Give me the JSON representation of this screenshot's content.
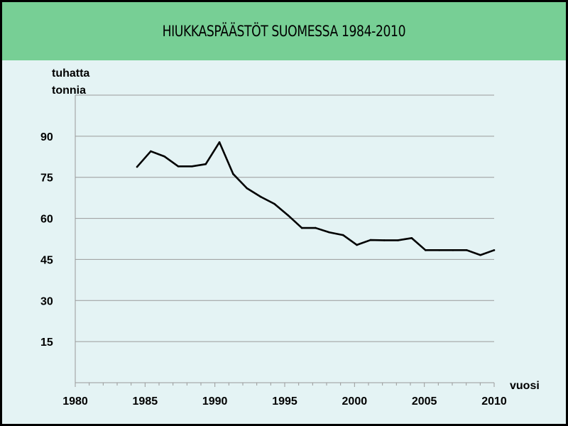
{
  "chart_data": {
    "type": "line",
    "title": "HIUKKASPÄÄSTÖT SUOMESSA 1984-2010",
    "ylabel_lines": [
      "tuhatta",
      "tonnia"
    ],
    "xlabel": "vuosi",
    "xlim": [
      1980,
      2010
    ],
    "ylim": [
      0,
      105
    ],
    "xticks": [
      "1980",
      "1985",
      "1990",
      "1995",
      "2000",
      "2005",
      "2010"
    ],
    "yticks": [
      "15",
      "30",
      "45",
      "60",
      "75",
      "90"
    ],
    "grid": true,
    "series": [
      {
        "name": "Hiukkaspäästöt",
        "color": "#000000",
        "x": [
          1984,
          1985,
          1986,
          1987,
          1988,
          1989,
          1990,
          1991,
          1992,
          1993,
          1994,
          1995,
          1996,
          1997,
          1998,
          1999,
          2000,
          2001,
          2002,
          2003,
          2004,
          2005,
          2006,
          2007,
          2008,
          2009,
          2010
        ],
        "values": [
          78.8,
          84.5,
          82.6,
          79,
          79,
          79.8,
          87.8,
          76.2,
          71,
          67.9,
          65.3,
          61.1,
          56.5,
          56.5,
          54.9,
          53.9,
          50.3,
          52.1,
          52,
          52,
          52.8,
          48.4,
          48.4,
          48.4,
          48.4,
          46.6,
          48.4
        ]
      }
    ]
  }
}
